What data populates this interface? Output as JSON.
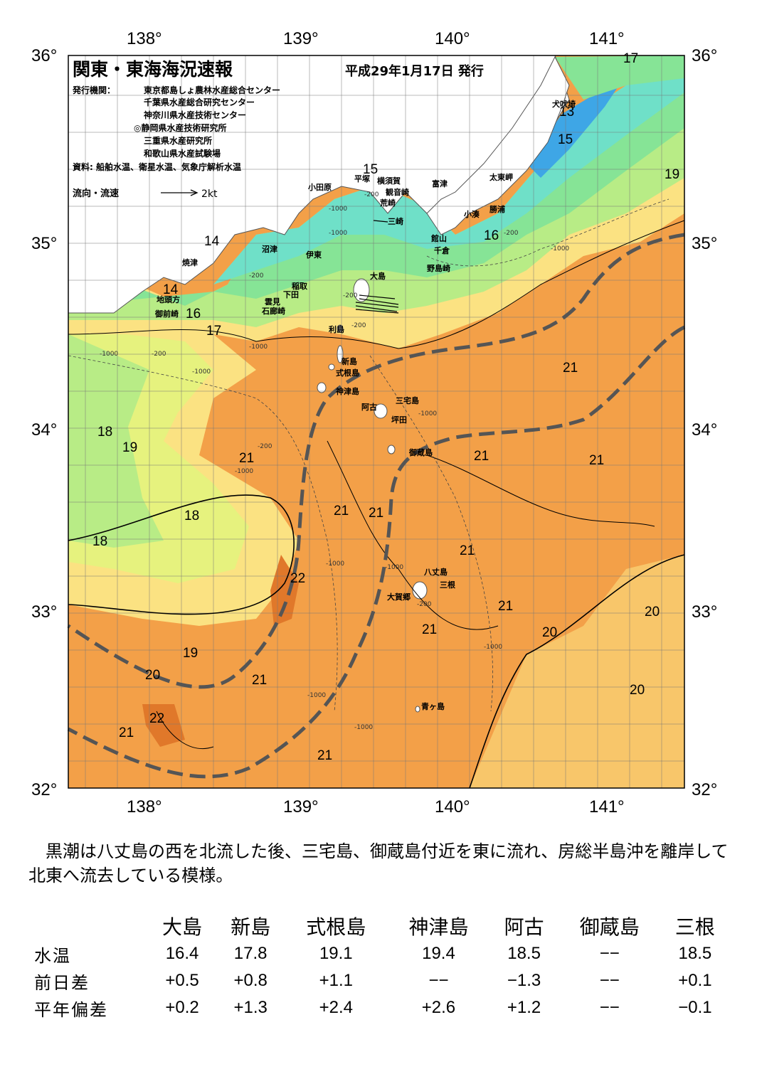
{
  "map": {
    "title": "関東・東海海況速報",
    "issue_date": "平成29年1月17日 発行",
    "issuer_label": "発行機関：",
    "issuers": [
      "東京都島しょ農林水産総合センター",
      "千葉県水産総合研究センター",
      "神奈川県水産技術センター",
      "◎静岡県水産技術研究所",
      "三重県水産研究所",
      "和歌山県水産試験場"
    ],
    "source": "資料: 船舶水温、衛星水温、気象庁解析水温",
    "flow_legend_label": "流向・流速",
    "flow_legend_speed": "2kt",
    "lon_labels": [
      "138°",
      "139°",
      "140°",
      "141°"
    ],
    "lat_labels": [
      "36°",
      "35°",
      "34°",
      "33°",
      "32°"
    ],
    "place_names": [
      "小田原",
      "平塚",
      "横須賀",
      "観音崎",
      "富津",
      "荒崎",
      "三崎",
      "太東岬",
      "勝浦",
      "小湊",
      "犬吠埼",
      "館山",
      "千倉",
      "野島崎",
      "沼津",
      "伊東",
      "稲取",
      "下田",
      "雲見",
      "石廊崎",
      "焼津",
      "地頭方",
      "御前崎",
      "大島",
      "利島",
      "新島",
      "式根島",
      "神津島",
      "三宅島",
      "阿古",
      "坪田",
      "御蔵島",
      "八丈島",
      "三根",
      "大賀郷",
      "青ヶ島"
    ],
    "isotherm_labels": [
      "13",
      "14",
      "15",
      "16",
      "17",
      "18",
      "19",
      "20",
      "21",
      "22"
    ],
    "depth_labels": [
      "-200",
      "-1000"
    ],
    "colors": {
      "t13": "#3ea6e6",
      "t14": "#5ed6e8",
      "t15": "#6fe0c8",
      "t16": "#86e496",
      "t17": "#b8ec86",
      "t18": "#e6f27e",
      "t19": "#fbe282",
      "t20": "#f8c66a",
      "t21": "#f3a048",
      "t22": "#e0782a",
      "land": "#ffffff",
      "kuroshio": "#555555"
    }
  },
  "caption": "黒潮は八丈島の西を北流した後、三宅島、御蔵島付近を東に流れ、房総半島沖を離岸して北東へ流去している模様。",
  "stats": {
    "stations": [
      "大島",
      "新島",
      "式根島",
      "神津島",
      "阿古",
      "御蔵島",
      "三根"
    ],
    "rows": [
      {
        "label": "水温",
        "values": [
          "16.4",
          "17.8",
          "19.1",
          "19.4",
          "18.5",
          "−−",
          "18.5"
        ]
      },
      {
        "label": "前日差",
        "values": [
          "+0.5",
          "+0.8",
          "+1.1",
          "−−",
          "−1.3",
          "−−",
          "+0.1"
        ]
      },
      {
        "label": "平年偏差",
        "values": [
          "+0.2",
          "+1.3",
          "+2.4",
          "+2.6",
          "+1.2",
          "−−",
          "−0.1"
        ]
      }
    ]
  }
}
